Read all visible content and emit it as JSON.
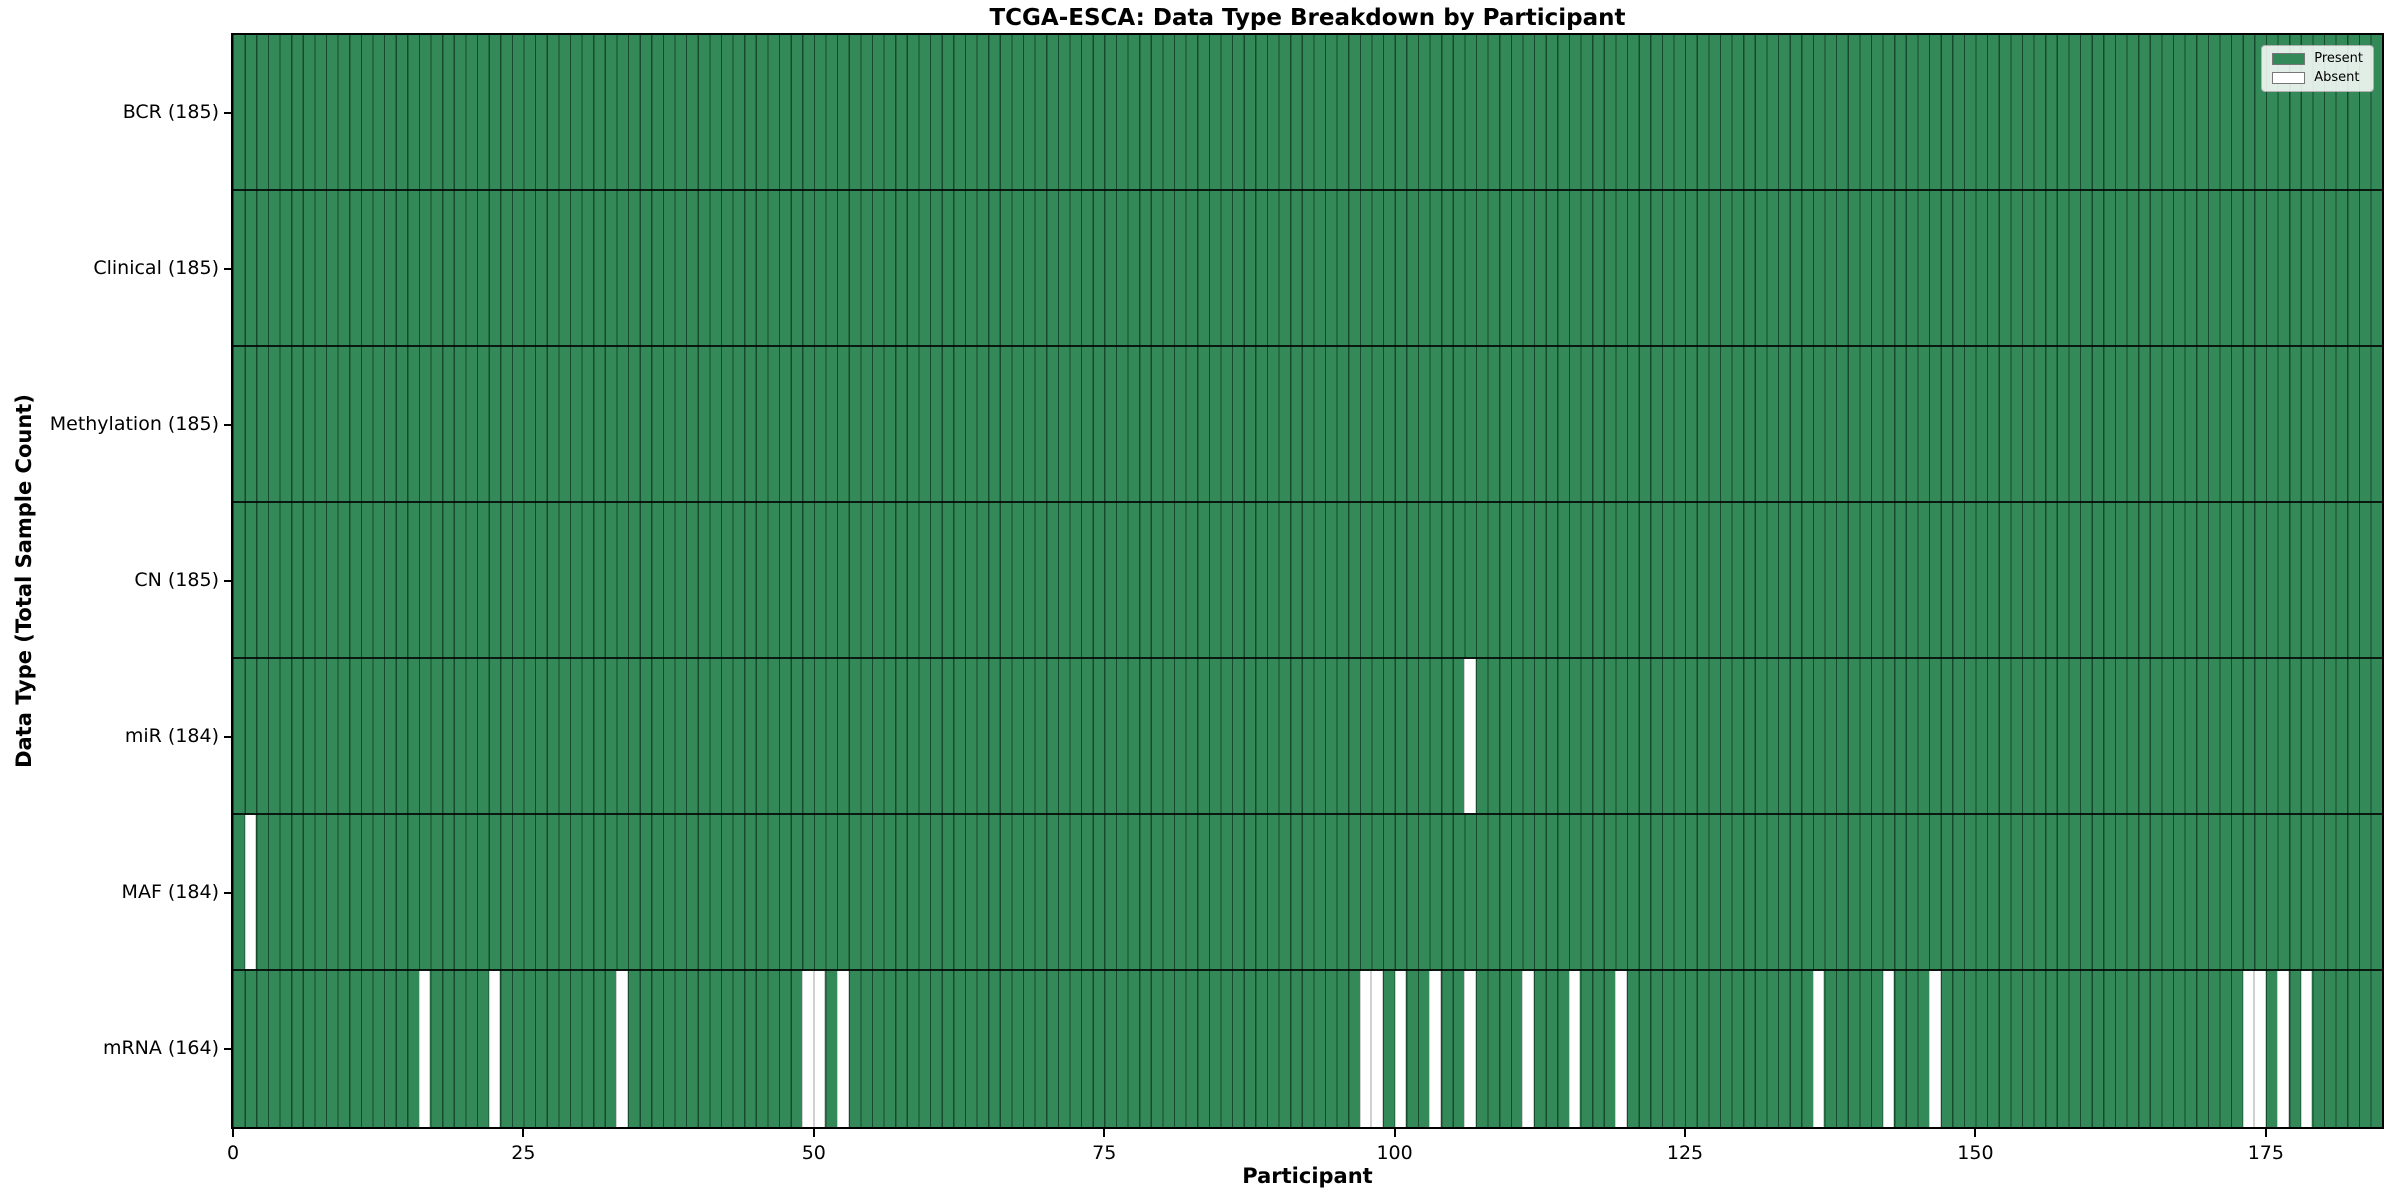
{
  "title": "TCGA-ESCA: Data Type Breakdown by Participant",
  "chart_data": {
    "type": "heatmap",
    "title": "TCGA-ESCA: Data Type Breakdown by Participant",
    "xlabel": "Participant",
    "ylabel": "Data Type (Total Sample Count)",
    "x_ticks": [
      0,
      25,
      50,
      75,
      100,
      125,
      150,
      175
    ],
    "x_range": [
      0,
      185
    ],
    "n_participants": 185,
    "grid": false,
    "legend_position": "upper right",
    "legend": [
      {
        "label": "Present",
        "color": "#338a58"
      },
      {
        "label": "Absent",
        "color": "#ffffff"
      }
    ],
    "rows": [
      {
        "label": "BCR (185)",
        "data_type": "BCR",
        "count": 185,
        "absent_participants": []
      },
      {
        "label": "Clinical (185)",
        "data_type": "Clinical",
        "count": 185,
        "absent_participants": []
      },
      {
        "label": "Methylation (185)",
        "data_type": "Methylation",
        "count": 185,
        "absent_participants": []
      },
      {
        "label": "CN (185)",
        "data_type": "CN",
        "count": 185,
        "absent_participants": []
      },
      {
        "label": "miR (184)",
        "data_type": "miR",
        "count": 184,
        "absent_participants": [
          106
        ]
      },
      {
        "label": "MAF (184)",
        "data_type": "MAF",
        "count": 184,
        "absent_participants": [
          1
        ]
      },
      {
        "label": "mRNA (164)",
        "data_type": "mRNA",
        "count": 164,
        "absent_participants": [
          16,
          22,
          33,
          49,
          50,
          52,
          97,
          98,
          100,
          103,
          106,
          111,
          115,
          119,
          136,
          142,
          146,
          173,
          174,
          176,
          178
        ]
      }
    ],
    "colors": {
      "present": "#338a58",
      "absent": "#ffffff",
      "cell_edge": "#0d2b1b",
      "axis": "#000000",
      "legend_border": "#b0b0b0",
      "background": "#ffffff"
    }
  }
}
